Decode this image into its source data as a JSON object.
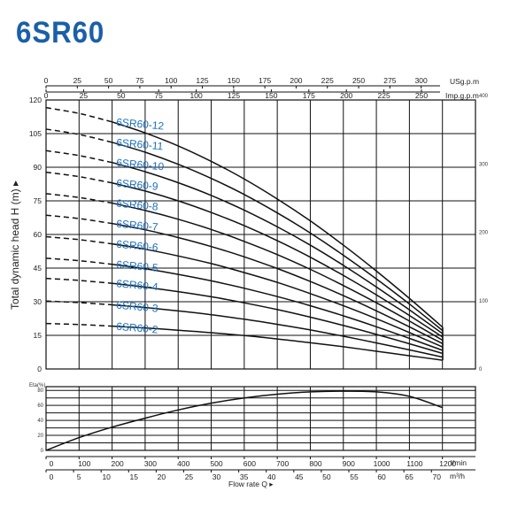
{
  "title": "6SR60",
  "y_axis_label": "Total dynamic head H (m) ▸",
  "x_axis_label": "Flow rate Q ▸",
  "units": {
    "usgpm": "USg.p.m",
    "impgpm": "Imp.g.p.m",
    "lmin": "l/min",
    "m3h": "m³/h",
    "eta": "Eta(%)"
  },
  "colors": {
    "title": "#1a5fa8",
    "curve_label": "#1a6fc2",
    "line": "#111111"
  },
  "ticks": {
    "usgpm": [
      "0",
      "25",
      "50",
      "75",
      "100",
      "125",
      "150",
      "175",
      "200",
      "225",
      "250",
      "275",
      "300"
    ],
    "impgpm": [
      "0",
      "25",
      "50",
      "75",
      "100",
      "125",
      "150",
      "175",
      "200",
      "225",
      "250"
    ],
    "head_m": [
      "0",
      "15",
      "30",
      "45",
      "60",
      "75",
      "90",
      "105",
      "120"
    ],
    "head_ft": [
      "0",
      "100",
      "200",
      "300",
      "400"
    ],
    "eta": [
      "0",
      "20",
      "40",
      "60",
      "80"
    ],
    "lmin": [
      "0",
      "100",
      "200",
      "300",
      "400",
      "500",
      "600",
      "700",
      "800",
      "900",
      "1000",
      "1100",
      "1200"
    ],
    "m3h": [
      "0",
      "5",
      "10",
      "15",
      "20",
      "25",
      "30",
      "35",
      "40",
      "45",
      "50",
      "55",
      "60",
      "65",
      "70"
    ]
  },
  "chart_data": [
    {
      "type": "line",
      "title": "6SR60",
      "xlabel": "Flow rate Q",
      "ylabel": "Total dynamic head H (m)",
      "x_unit": "l/min",
      "xlim": [
        0,
        1300
      ],
      "ylim": [
        0,
        120
      ],
      "grid": true,
      "x": [
        0,
        100,
        200,
        300,
        400,
        500,
        600,
        700,
        800,
        900,
        1000,
        1100,
        1200
      ],
      "series": [
        {
          "name": "6SR60-2",
          "dashed_until": 200,
          "values": [
            20.3,
            19.8,
            19.1,
            18.3,
            17.3,
            16.2,
            14.9,
            13.4,
            11.7,
            9.9,
            7.9,
            5.9,
            3.9
          ]
        },
        {
          "name": "6SR60-3",
          "dashed_until": 200,
          "values": [
            30.3,
            29.6,
            28.6,
            27.4,
            25.9,
            24.2,
            22.2,
            19.9,
            17.4,
            14.6,
            11.6,
            8.5,
            5.3
          ]
        },
        {
          "name": "6SR60-4",
          "dashed_until": 200,
          "values": [
            40.4,
            39.5,
            38.2,
            36.5,
            34.5,
            32.2,
            29.5,
            26.5,
            23.1,
            19.4,
            15.4,
            11.2,
            6.9
          ]
        },
        {
          "name": "6SR60-5",
          "dashed_until": 200,
          "values": [
            49.4,
            48.3,
            46.7,
            44.7,
            42.2,
            39.3,
            36.0,
            32.3,
            28.2,
            23.7,
            18.8,
            13.6,
            8.3
          ]
        },
        {
          "name": "6SR60-6",
          "dashed_until": 200,
          "values": [
            59.0,
            57.7,
            55.8,
            53.4,
            50.4,
            47.0,
            43.0,
            38.6,
            33.6,
            28.2,
            22.4,
            16.2,
            9.8
          ]
        },
        {
          "name": "6SR60-7",
          "dashed_until": 200,
          "values": [
            68.6,
            67.1,
            64.9,
            62.1,
            58.6,
            54.6,
            50.0,
            44.8,
            39.0,
            32.7,
            25.9,
            18.7,
            11.3
          ]
        },
        {
          "name": "6SR60-8",
          "dashed_until": 200,
          "values": [
            78.2,
            76.5,
            74.0,
            70.7,
            66.8,
            62.2,
            56.9,
            51.0,
            44.4,
            37.2,
            29.5,
            21.3,
            12.8
          ]
        },
        {
          "name": "6SR60-9",
          "dashed_until": 200,
          "values": [
            87.8,
            85.8,
            83.0,
            79.4,
            75.0,
            69.8,
            63.9,
            57.2,
            49.8,
            41.7,
            33.0,
            23.8,
            14.2
          ]
        },
        {
          "name": "6SR60-10",
          "dashed_until": 200,
          "values": [
            97.4,
            95.2,
            92.1,
            88.0,
            83.1,
            77.4,
            70.8,
            63.4,
            55.2,
            46.2,
            36.5,
            26.3,
            15.7
          ]
        },
        {
          "name": "6SR60-11",
          "dashed_until": 200,
          "values": [
            107.0,
            104.6,
            101.1,
            96.7,
            91.3,
            85.0,
            77.8,
            69.6,
            60.6,
            50.7,
            40.1,
            28.9,
            17.1
          ]
        },
        {
          "name": "6SR60-12",
          "dashed_until": 200,
          "values": [
            116.6,
            114.0,
            110.2,
            105.3,
            99.5,
            92.6,
            84.7,
            75.8,
            66.0,
            55.2,
            43.6,
            31.4,
            18.6
          ]
        }
      ]
    },
    {
      "type": "line",
      "ylabel": "Eta(%)",
      "x_unit": "l/min",
      "xlim": [
        0,
        1300
      ],
      "ylim": [
        0,
        85
      ],
      "grid": true,
      "x": [
        0,
        100,
        200,
        300,
        400,
        500,
        600,
        700,
        800,
        900,
        1000,
        1100,
        1200
      ],
      "series": [
        {
          "values": [
            0,
            17,
            31,
            43,
            54,
            63,
            70,
            75,
            78,
            79,
            78,
            72,
            57
          ]
        }
      ]
    }
  ]
}
